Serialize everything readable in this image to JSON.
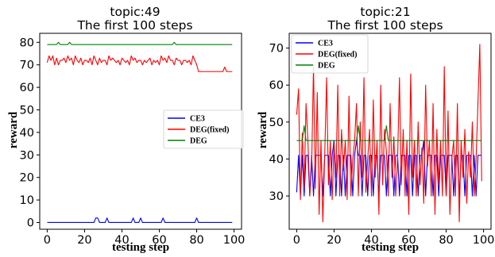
{
  "chart_data": [
    {
      "type": "line",
      "title": "topic:49",
      "subtitle": "The first 100 steps",
      "xlabel": "testing step",
      "ylabel": "reward",
      "xlim": [
        -4,
        104
      ],
      "ylim": [
        -3,
        84
      ],
      "xticks": [
        0,
        20,
        40,
        60,
        80,
        100
      ],
      "yticks": [
        0,
        10,
        20,
        30,
        40,
        50,
        60,
        70,
        80
      ],
      "legend_position": "center-right",
      "x": [
        0,
        1,
        2,
        3,
        4,
        5,
        6,
        7,
        8,
        9,
        10,
        11,
        12,
        13,
        14,
        15,
        16,
        17,
        18,
        19,
        20,
        21,
        22,
        23,
        24,
        25,
        26,
        27,
        28,
        29,
        30,
        31,
        32,
        33,
        34,
        35,
        36,
        37,
        38,
        39,
        40,
        41,
        42,
        43,
        44,
        45,
        46,
        47,
        48,
        49,
        50,
        51,
        52,
        53,
        54,
        55,
        56,
        57,
        58,
        59,
        60,
        61,
        62,
        63,
        64,
        65,
        66,
        67,
        68,
        69,
        70,
        71,
        72,
        73,
        74,
        75,
        76,
        77,
        78,
        79,
        80,
        81,
        82,
        83,
        84,
        85,
        86,
        87,
        88,
        89,
        90,
        91,
        92,
        93,
        94,
        95,
        96,
        97,
        98,
        99
      ],
      "series": [
        {
          "name": "CE3",
          "color": "#0000ff",
          "values": [
            0,
            0,
            0,
            0,
            0,
            0,
            0,
            0,
            0,
            0,
            0,
            0,
            0,
            0,
            0,
            0,
            0,
            0,
            0,
            0,
            0,
            0,
            0,
            0,
            0,
            0,
            2,
            2,
            0,
            0,
            0,
            0,
            2,
            0,
            0,
            0,
            0,
            0,
            0,
            0,
            0,
            0,
            0,
            0,
            0,
            0,
            2,
            0,
            0,
            0,
            2,
            0,
            0,
            0,
            0,
            0,
            0,
            0,
            0,
            0,
            0,
            0,
            2,
            0,
            0,
            0,
            0,
            0,
            0,
            0,
            0,
            0,
            0,
            0,
            0,
            0,
            0,
            0,
            0,
            0,
            2,
            0,
            0,
            0,
            0,
            0,
            0,
            0,
            0,
            0,
            0,
            0,
            0,
            0,
            0,
            0,
            0,
            0,
            0,
            0
          ]
        },
        {
          "name": "DEG(fixed)",
          "color": "#ff0000",
          "values": [
            71,
            74,
            72,
            74,
            70,
            73,
            70,
            72,
            72,
            73,
            71,
            74,
            72,
            73,
            70,
            74,
            72,
            71,
            73,
            70,
            72,
            72,
            71,
            73,
            70,
            74,
            72,
            70,
            73,
            71,
            72,
            72,
            70,
            74,
            72,
            73,
            72,
            71,
            72,
            70,
            73,
            72,
            71,
            72,
            70,
            74,
            72,
            73,
            71,
            72,
            72,
            70,
            72,
            71,
            72,
            73,
            70,
            72,
            71,
            72,
            70,
            74,
            72,
            73,
            71,
            74,
            72,
            72,
            70,
            73,
            72,
            72,
            70,
            72,
            72,
            71,
            72,
            70,
            74,
            72,
            70,
            67,
            67,
            67,
            67,
            67,
            67,
            67,
            67,
            67,
            67,
            67,
            67,
            67,
            67,
            69,
            67,
            67,
            67,
            67
          ]
        },
        {
          "name": "DEG",
          "color": "#008000",
          "values": [
            79,
            79,
            79,
            79,
            79,
            79,
            80,
            79,
            79,
            79,
            79,
            79,
            80,
            79,
            79,
            79,
            79,
            79,
            79,
            79,
            79,
            79,
            79,
            79,
            79,
            79,
            79,
            79,
            79,
            79,
            79,
            79,
            79,
            79,
            79,
            79,
            79,
            79,
            79,
            79,
            79,
            79,
            79,
            79,
            79,
            79,
            79,
            79,
            79,
            79,
            79,
            79,
            79,
            79,
            79,
            79,
            79,
            79,
            79,
            79,
            79,
            79,
            79,
            79,
            79,
            79,
            79,
            79,
            80,
            79,
            79,
            79,
            79,
            79,
            79,
            79,
            79,
            79,
            79,
            79,
            79,
            79,
            79,
            79,
            79,
            79,
            79,
            79,
            79,
            79,
            79,
            79,
            79,
            79,
            79,
            79,
            79,
            79,
            79,
            79
          ]
        }
      ]
    },
    {
      "type": "line",
      "title": "topic:21",
      "subtitle": "The first 100 steps",
      "xlabel": "testing step",
      "ylabel": "reward",
      "xlim": [
        -4,
        104
      ],
      "ylim": [
        21,
        74
      ],
      "xticks": [
        0,
        20,
        40,
        60,
        80,
        100
      ],
      "yticks": [
        30,
        40,
        50,
        60,
        70
      ],
      "legend_position": "top-left",
      "x": [
        0,
        1,
        2,
        3,
        4,
        5,
        6,
        7,
        8,
        9,
        10,
        11,
        12,
        13,
        14,
        15,
        16,
        17,
        18,
        19,
        20,
        21,
        22,
        23,
        24,
        25,
        26,
        27,
        28,
        29,
        30,
        31,
        32,
        33,
        34,
        35,
        36,
        37,
        38,
        39,
        40,
        41,
        42,
        43,
        44,
        45,
        46,
        47,
        48,
        49,
        50,
        51,
        52,
        53,
        54,
        55,
        56,
        57,
        58,
        59,
        60,
        61,
        62,
        63,
        64,
        65,
        66,
        67,
        68,
        69,
        70,
        71,
        72,
        73,
        74,
        75,
        76,
        77,
        78,
        79,
        80,
        81,
        82,
        83,
        84,
        85,
        86,
        87,
        88,
        89,
        90,
        91,
        92,
        93,
        94,
        95,
        96,
        97,
        98,
        99
      ],
      "series": [
        {
          "name": "CE3",
          "color": "#0000ff",
          "values": [
            31,
            41,
            30,
            41,
            30,
            41,
            41,
            30,
            41,
            30,
            41,
            41,
            41,
            41,
            30,
            41,
            41,
            41,
            30,
            41,
            45,
            30,
            41,
            41,
            30,
            41,
            30,
            41,
            41,
            41,
            30,
            41,
            45,
            41,
            41,
            30,
            41,
            41,
            30,
            41,
            41,
            30,
            41,
            41,
            30,
            41,
            41,
            41,
            30,
            41,
            41,
            41,
            30,
            41,
            41,
            30,
            41,
            41,
            41,
            30,
            41,
            41,
            30,
            41,
            41,
            30,
            41,
            41,
            45,
            30,
            41,
            41,
            41,
            30,
            41,
            41,
            30,
            41,
            41,
            41,
            30,
            41,
            41,
            41,
            30,
            41,
            41,
            30,
            41,
            41,
            30,
            41,
            41,
            41,
            30,
            41,
            30,
            41,
            41,
            41
          ]
        },
        {
          "name": "DEG(fixed)",
          "color": "#ff0000",
          "values": [
            52,
            59,
            29,
            47,
            32,
            55,
            45,
            30,
            38,
            65,
            32,
            58,
            25,
            45,
            23,
            41,
            62,
            33,
            45,
            29,
            44,
            35,
            60,
            30,
            48,
            37,
            45,
            29,
            57,
            30,
            40,
            45,
            55,
            30,
            50,
            35,
            62,
            31,
            40,
            48,
            30,
            56,
            35,
            45,
            25,
            60,
            33,
            48,
            42,
            30,
            55,
            35,
            46,
            30,
            40,
            62,
            33,
            48,
            30,
            45,
            25,
            63,
            35,
            45,
            30,
            50,
            33,
            43,
            28,
            60,
            38,
            45,
            30,
            55,
            25,
            48,
            33,
            45,
            30,
            65,
            30,
            53,
            25,
            40,
            45,
            30,
            55,
            23,
            45,
            35,
            48,
            28,
            42,
            35,
            50,
            30,
            40,
            55,
            71,
            34
          ]
        },
        {
          "name": "DEG",
          "color": "#008000",
          "values": [
            45,
            45,
            45,
            45,
            49,
            45,
            45,
            45,
            45,
            45,
            45,
            45,
            45,
            45,
            45,
            45,
            45,
            45,
            45,
            45,
            45,
            45,
            45,
            45,
            45,
            45,
            45,
            45,
            45,
            45,
            45,
            45,
            45,
            49,
            45,
            45,
            45,
            45,
            45,
            45,
            45,
            45,
            45,
            45,
            45,
            45,
            45,
            45,
            49,
            45,
            45,
            45,
            45,
            45,
            45,
            45,
            45,
            45,
            45,
            45,
            45,
            45,
            45,
            45,
            45,
            45,
            45,
            45,
            45,
            45,
            45,
            45,
            45,
            45,
            45,
            45,
            45,
            45,
            45,
            45,
            45,
            45,
            45,
            45,
            45,
            45,
            45,
            45,
            45,
            45,
            45,
            45,
            45,
            45,
            45,
            45,
            45,
            45,
            45,
            45
          ]
        }
      ]
    }
  ]
}
